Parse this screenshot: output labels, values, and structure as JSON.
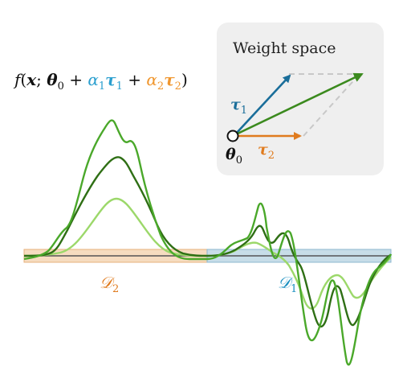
{
  "formula": {
    "f": "f",
    "open": "(",
    "x": "x",
    "semi": "; ",
    "theta": "θ",
    "theta_sub": "0",
    "plus1": " + ",
    "a1": "α",
    "a1_sub": "1",
    "tau1": "τ",
    "tau1_sub": "1",
    "plus2": " + ",
    "a2": "α",
    "a2_sub": "2",
    "tau2": "τ",
    "tau2_sub": "2",
    "close": ")"
  },
  "weight_space": {
    "title": "Weight space",
    "origin_label": "θ",
    "origin_sub": "0",
    "tau1_label": "τ",
    "tau1_sub": "1",
    "tau2_label": "τ",
    "tau2_sub": "2"
  },
  "domains": {
    "d2_label": "𝒟",
    "d2_sub": "2",
    "d1_label": "𝒟",
    "d1_sub": "1"
  },
  "colors": {
    "blue": "#1a6e9a",
    "orange": "#e07b1e",
    "green_combined": "#3b8a1e",
    "green_dark": "#2f6f15",
    "green_mid": "#4aa82a",
    "green_light": "#9cd86a",
    "panel_bg": "#efefef",
    "d2_band": "#f6dcc0",
    "d1_band": "#c7dde8"
  }
}
